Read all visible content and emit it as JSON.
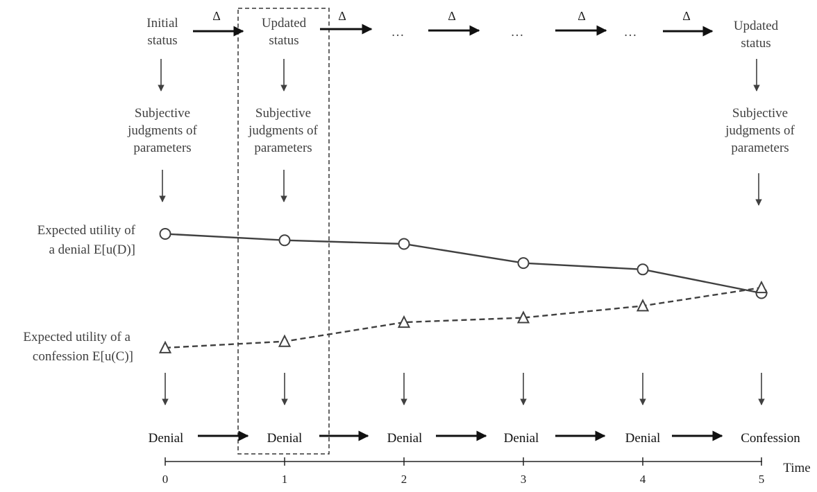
{
  "top_row": {
    "status_labels": [
      [
        "Initial",
        "status"
      ],
      [
        "Updated",
        "status"
      ],
      [
        "Updated",
        "status"
      ]
    ],
    "delta_symbol": "Δ",
    "ellipsis": "…"
  },
  "judgment_label": [
    "Subjective",
    "judgments of",
    "parameters"
  ],
  "row_labels": {
    "denial_utility": [
      "Expected utility of",
      "a denial E[u(D)]"
    ],
    "confession_utility": [
      "Expected utility of a",
      "confession E[u(C)]"
    ]
  },
  "decisions": [
    "Denial",
    "Denial",
    "Denial",
    "Denial",
    "Denial",
    "Confession"
  ],
  "time_axis": {
    "label": "Time",
    "ticks": [
      "0",
      "1",
      "2",
      "3",
      "4",
      "5"
    ]
  },
  "chart_data": {
    "type": "line",
    "x": [
      0,
      1,
      2,
      3,
      4,
      5
    ],
    "series": [
      {
        "key": "denial",
        "values": [
          0.92,
          0.85,
          0.81,
          0.6,
          0.53,
          0.27
        ],
        "marker": "circle",
        "line": "solid"
      },
      {
        "key": "confession",
        "values": [
          -0.33,
          -0.26,
          -0.05,
          0.0,
          0.13,
          0.33
        ],
        "marker": "triangle",
        "line": "dashed"
      }
    ],
    "highlight": {
      "around_x": 1,
      "style": "dashed-box"
    }
  },
  "colors": {
    "ink": "#404040",
    "arrow": "#111111"
  }
}
